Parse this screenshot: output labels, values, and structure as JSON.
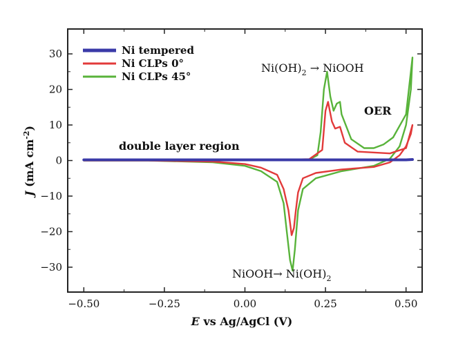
{
  "chart_data": {
    "type": "line",
    "xlabel_prefix": "E",
    "xlabel": "vs Ag/AgCl (V)",
    "ylabel_prefix": "J",
    "ylabel": "(mA cm",
    "ylabel_sup": "-2",
    "ylabel_suffix": ")",
    "xlim": [
      -0.55,
      0.55
    ],
    "ylim": [
      -37,
      37
    ],
    "xticks": [
      -0.5,
      -0.25,
      0.0,
      0.25,
      0.5
    ],
    "xtick_labels": [
      "−0.50",
      "−0.25",
      "0.00",
      "0.25",
      "0.50"
    ],
    "yticks": [
      -30,
      -20,
      -10,
      0,
      10,
      20,
      30
    ],
    "ytick_labels": [
      "−30",
      "−20",
      "−10",
      "0",
      "10",
      "20",
      "30"
    ],
    "legend_position": "top-left",
    "series": [
      {
        "name": "Ni tempered",
        "color": "#3a3aa8",
        "x": [
          -0.5,
          -0.25,
          0.0,
          0.25,
          0.5,
          0.52
        ],
        "y": [
          0.2,
          0.2,
          0.2,
          0.2,
          0.2,
          0.3
        ]
      },
      {
        "name": "Ni CLPs 0°",
        "color": "#e23a3a",
        "x": [
          -0.5,
          -0.3,
          -0.1,
          0.0,
          0.05,
          0.1,
          0.12,
          0.135,
          0.145,
          0.152,
          0.158,
          0.165,
          0.18,
          0.22,
          0.3,
          0.4,
          0.45,
          0.48,
          0.5,
          0.515,
          0.52,
          0.5,
          0.45,
          0.35,
          0.31,
          0.295,
          0.28,
          0.27,
          0.258,
          0.25,
          0.24,
          0.2,
          0.1,
          0.0,
          -0.2,
          -0.5
        ],
        "y": [
          0.0,
          0.0,
          -0.3,
          -1.0,
          -2.0,
          -4.0,
          -8.0,
          -14.0,
          -21.0,
          -19.0,
          -14.0,
          -9.0,
          -5.0,
          -3.5,
          -2.5,
          -1.8,
          -0.5,
          1.5,
          4.0,
          7.5,
          10.0,
          3.5,
          2.0,
          2.5,
          5.0,
          9.5,
          9.0,
          11.0,
          16.5,
          14.0,
          3.0,
          0.4,
          0.2,
          0.2,
          0.1,
          0.0
        ]
      },
      {
        "name": "Ni CLPs 45°",
        "color": "#58b33a",
        "x": [
          -0.5,
          -0.3,
          -0.1,
          0.0,
          0.05,
          0.1,
          0.12,
          0.13,
          0.14,
          0.148,
          0.155,
          0.165,
          0.18,
          0.22,
          0.3,
          0.4,
          0.45,
          0.48,
          0.5,
          0.515,
          0.52,
          0.5,
          0.46,
          0.43,
          0.4,
          0.37,
          0.33,
          0.3,
          0.295,
          0.285,
          0.275,
          0.265,
          0.255,
          0.245,
          0.235,
          0.225,
          0.2,
          0.1,
          0.0,
          -0.2,
          -0.5
        ],
        "y": [
          0.0,
          0.0,
          -0.5,
          -1.5,
          -3.0,
          -6.0,
          -12.0,
          -20.0,
          -28.0,
          -31.0,
          -25.0,
          -14.0,
          -8.0,
          -5.0,
          -3.0,
          -1.5,
          0.5,
          4.0,
          10.0,
          20.0,
          29.0,
          13.0,
          6.5,
          4.5,
          3.5,
          3.5,
          6.0,
          13.0,
          16.5,
          16.0,
          14.0,
          18.0,
          25.0,
          20.0,
          8.0,
          1.5,
          0.3,
          0.1,
          0.1,
          0.0,
          0.0
        ]
      }
    ],
    "annotations": [
      {
        "text": "double layer region",
        "style": "bold"
      },
      {
        "text": "Ni(OH)",
        "sub": "2",
        "arrow": " → NiOOH",
        "style": "normal"
      },
      {
        "text": "OER",
        "style": "bold"
      },
      {
        "text": "NiOOH→ Ni(OH)",
        "sub": "2",
        "style": "normal"
      }
    ]
  }
}
